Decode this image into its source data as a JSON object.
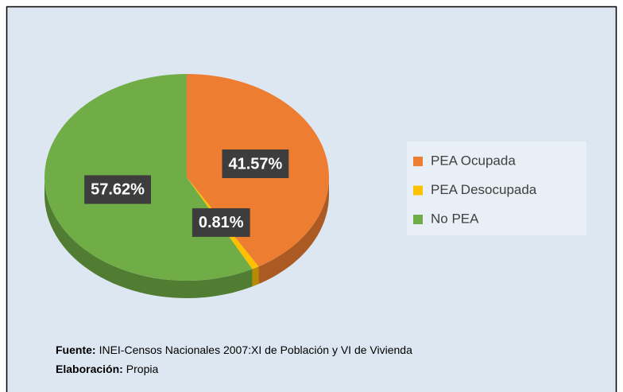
{
  "chart_data": {
    "type": "pie",
    "categories": [
      "PEA Ocupada",
      "PEA Desocupada",
      "No PEA"
    ],
    "values": [
      41.57,
      0.81,
      57.62
    ],
    "value_labels": [
      "41.57%",
      "0.81%",
      "57.62%"
    ],
    "colors": [
      "#ed7d31",
      "#ffc000",
      "#70ad47"
    ],
    "legend": "right",
    "notes": [
      {
        "label": "Fuente:",
        "text": "INEI-Censos Nacionales 2007:XI de Población y VI de Vivienda"
      },
      {
        "label": "Elaboración:",
        "text": "Propia"
      }
    ]
  }
}
